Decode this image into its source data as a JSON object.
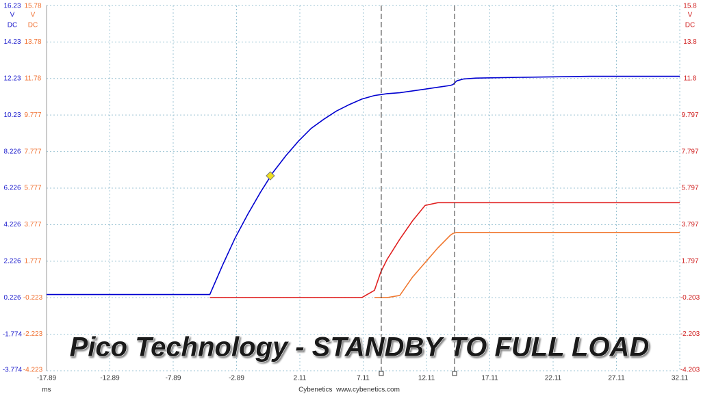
{
  "chart_data": {
    "type": "line",
    "title": "Pico Technology - STANDBY TO FULL LOAD",
    "footer": "Cybenetics  www.cybenetics.com",
    "x_label": "ms",
    "xlim": [
      -17.89,
      32.11
    ],
    "xticks": [
      -17.89,
      -12.89,
      -7.89,
      -2.89,
      2.11,
      7.11,
      12.11,
      17.11,
      22.11,
      27.11,
      32.11
    ],
    "ylim": [
      -3.774,
      16.23
    ],
    "yticks": [
      -3.774,
      -1.774,
      0.226,
      2.226,
      4.226,
      6.226,
      8.226,
      10.23,
      12.23,
      14.23,
      16.23
    ],
    "y2lim": [
      -4.223,
      15.78
    ],
    "y2ticks": [
      -4.223,
      -2.223,
      -0.223,
      1.777,
      3.777,
      5.777,
      7.777,
      9.777,
      11.78,
      13.78,
      15.78
    ],
    "y3lim": [
      -4.203,
      15.8
    ],
    "y3ticks": [
      -4.203,
      -2.203,
      -0.203,
      1.797,
      3.797,
      5.797,
      7.797,
      9.797,
      11.8,
      13.8,
      15.8
    ],
    "y_units": [
      {
        "unit": "V",
        "coupling": "DC",
        "color": "#1a1acc"
      },
      {
        "unit": "V",
        "coupling": "DC",
        "color": "#f07030"
      },
      {
        "unit": "V",
        "coupling": "DC",
        "color": "#d02020"
      }
    ],
    "grid": true,
    "x": [
      -17.89,
      -5.0,
      -4,
      -3,
      -2,
      -1,
      0,
      1,
      2,
      3,
      4,
      5,
      6,
      7,
      8,
      8.5,
      9,
      10,
      11,
      12,
      13,
      14,
      14.2,
      14.5,
      15,
      16,
      20,
      25,
      32.11
    ],
    "series": [
      {
        "color": "#e02020",
        "axis": "y3",
        "values": [
          null,
          -0.2,
          -0.2,
          -0.2,
          -0.2,
          -0.2,
          -0.2,
          -0.2,
          -0.2,
          -0.2,
          -0.2,
          -0.2,
          -0.2,
          -0.2,
          0.2,
          1.2,
          1.9,
          3.0,
          4.0,
          4.85,
          5.0,
          5.0,
          5.0,
          5.0,
          5.0,
          5.0,
          5.0,
          5.0,
          5.0
        ]
      },
      {
        "color": "#f07830",
        "axis": "y2",
        "values": [
          null,
          null,
          null,
          null,
          null,
          null,
          null,
          null,
          null,
          null,
          null,
          null,
          null,
          null,
          -0.22,
          -0.22,
          -0.22,
          -0.1,
          0.9,
          1.7,
          2.5,
          3.2,
          3.3,
          3.35,
          3.35,
          3.35,
          3.35,
          3.35,
          3.35
        ]
      },
      {
        "color": "#0000d0",
        "axis": "y",
        "values": [
          0.4,
          0.4,
          2.0,
          3.5,
          4.8,
          6.0,
          7.1,
          8.0,
          8.8,
          9.5,
          10.0,
          10.45,
          10.8,
          11.1,
          11.3,
          11.35,
          11.4,
          11.45,
          11.55,
          11.65,
          11.75,
          11.85,
          11.9,
          12.1,
          12.2,
          12.25,
          12.3,
          12.35,
          12.35
        ]
      }
    ],
    "marker": {
      "x": -0.22,
      "value": 6.9,
      "color": "#f0e020"
    },
    "cursors": [
      8.54,
      14.33
    ]
  }
}
